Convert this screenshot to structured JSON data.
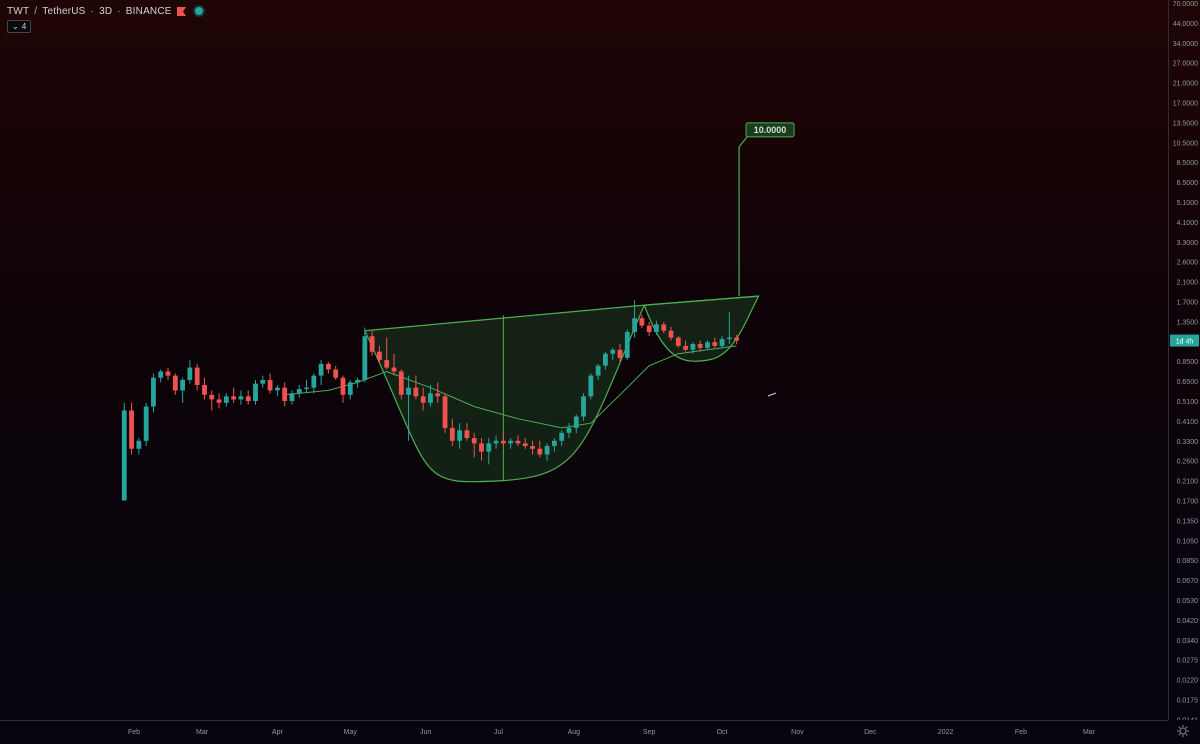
{
  "header": {
    "base": "TWT",
    "separator": "/",
    "quote": "TetherUS",
    "interval": "3D",
    "exchange": "BINANCE",
    "indicator_button": "4"
  },
  "chart_data": {
    "type": "candlestick",
    "price_scale": "log",
    "price_axis_ticks": [
      "70.0000",
      "44.0000",
      "34.0000",
      "27.0000",
      "21.0000",
      "17.0000",
      "13.5000",
      "10.5000",
      "8.5000",
      "6.5000",
      "5.1000",
      "4.1000",
      "3.3000",
      "2.6000",
      "2.1000",
      "1.7000",
      "1.3500",
      "1.0500",
      "0.8500",
      "0.6500",
      "0.5100",
      "0.4100",
      "0.3300",
      "0.2600",
      "0.2100",
      "0.1700",
      "0.1350",
      "0.1050",
      "0.0850",
      "0.0670",
      "0.0530",
      "0.0420",
      "0.0340",
      "0.0275",
      "0.0220",
      "0.0175",
      "0.0141"
    ],
    "time_axis_ticks": [
      "Feb",
      "Mar",
      "Apr",
      "May",
      "Jun",
      "Jul",
      "Aug",
      "Sep",
      "Oct",
      "Nov",
      "Dec",
      "2022",
      "Feb",
      "Mar"
    ],
    "last_price_label": "1d 4h",
    "target_label": "10.0000",
    "colors": {
      "up": "#26a69a",
      "down": "#ef5350",
      "drawing": "#4caf50",
      "fill": "#1b3a1f"
    },
    "candles": [
      {
        "d": "2021-01-28",
        "o": 0.17,
        "h": 0.5,
        "l": 0.17,
        "c": 0.46
      },
      {
        "d": "2021-01-31",
        "o": 0.46,
        "h": 0.5,
        "l": 0.28,
        "c": 0.3
      },
      {
        "d": "2021-02-03",
        "o": 0.3,
        "h": 0.34,
        "l": 0.28,
        "c": 0.33
      },
      {
        "d": "2021-02-06",
        "o": 0.33,
        "h": 0.5,
        "l": 0.31,
        "c": 0.48
      },
      {
        "d": "2021-02-09",
        "o": 0.48,
        "h": 0.72,
        "l": 0.45,
        "c": 0.68
      },
      {
        "d": "2021-02-12",
        "o": 0.68,
        "h": 0.76,
        "l": 0.64,
        "c": 0.74
      },
      {
        "d": "2021-02-15",
        "o": 0.74,
        "h": 0.78,
        "l": 0.66,
        "c": 0.7
      },
      {
        "d": "2021-02-18",
        "o": 0.7,
        "h": 0.72,
        "l": 0.55,
        "c": 0.58
      },
      {
        "d": "2021-02-21",
        "o": 0.58,
        "h": 0.68,
        "l": 0.5,
        "c": 0.66
      },
      {
        "d": "2021-02-24",
        "o": 0.66,
        "h": 0.86,
        "l": 0.63,
        "c": 0.78
      },
      {
        "d": "2021-02-27",
        "o": 0.78,
        "h": 0.82,
        "l": 0.58,
        "c": 0.62
      },
      {
        "d": "2021-03-02",
        "o": 0.62,
        "h": 0.68,
        "l": 0.52,
        "c": 0.55
      },
      {
        "d": "2021-03-05",
        "o": 0.55,
        "h": 0.58,
        "l": 0.46,
        "c": 0.52
      },
      {
        "d": "2021-03-08",
        "o": 0.52,
        "h": 0.56,
        "l": 0.47,
        "c": 0.5
      },
      {
        "d": "2021-03-11",
        "o": 0.5,
        "h": 0.56,
        "l": 0.48,
        "c": 0.54
      },
      {
        "d": "2021-03-14",
        "o": 0.54,
        "h": 0.6,
        "l": 0.5,
        "c": 0.52
      },
      {
        "d": "2021-03-17",
        "o": 0.52,
        "h": 0.58,
        "l": 0.49,
        "c": 0.54
      },
      {
        "d": "2021-03-20",
        "o": 0.54,
        "h": 0.58,
        "l": 0.49,
        "c": 0.51
      },
      {
        "d": "2021-03-23",
        "o": 0.51,
        "h": 0.66,
        "l": 0.49,
        "c": 0.63
      },
      {
        "d": "2021-03-26",
        "o": 0.63,
        "h": 0.7,
        "l": 0.6,
        "c": 0.66
      },
      {
        "d": "2021-03-29",
        "o": 0.66,
        "h": 0.72,
        "l": 0.56,
        "c": 0.58
      },
      {
        "d": "2021-04-01",
        "o": 0.58,
        "h": 0.62,
        "l": 0.54,
        "c": 0.6
      },
      {
        "d": "2021-04-04",
        "o": 0.6,
        "h": 0.64,
        "l": 0.48,
        "c": 0.51
      },
      {
        "d": "2021-04-07",
        "o": 0.51,
        "h": 0.58,
        "l": 0.49,
        "c": 0.56
      },
      {
        "d": "2021-04-10",
        "o": 0.56,
        "h": 0.62,
        "l": 0.53,
        "c": 0.59
      },
      {
        "d": "2021-04-13",
        "o": 0.59,
        "h": 0.66,
        "l": 0.56,
        "c": 0.6
      },
      {
        "d": "2021-04-16",
        "o": 0.6,
        "h": 0.72,
        "l": 0.56,
        "c": 0.7
      },
      {
        "d": "2021-04-19",
        "o": 0.7,
        "h": 0.86,
        "l": 0.62,
        "c": 0.82
      },
      {
        "d": "2021-04-22",
        "o": 0.82,
        "h": 0.84,
        "l": 0.72,
        "c": 0.76
      },
      {
        "d": "2021-04-25",
        "o": 0.76,
        "h": 0.8,
        "l": 0.66,
        "c": 0.68
      },
      {
        "d": "2021-04-28",
        "o": 0.68,
        "h": 0.7,
        "l": 0.5,
        "c": 0.55
      },
      {
        "d": "2021-05-01",
        "o": 0.55,
        "h": 0.66,
        "l": 0.52,
        "c": 0.64
      },
      {
        "d": "2021-05-04",
        "o": 0.64,
        "h": 0.68,
        "l": 0.6,
        "c": 0.66
      },
      {
        "d": "2021-05-07",
        "o": 0.66,
        "h": 1.25,
        "l": 0.64,
        "c": 1.12
      },
      {
        "d": "2021-05-10",
        "o": 1.12,
        "h": 1.2,
        "l": 0.9,
        "c": 0.94
      },
      {
        "d": "2021-05-13",
        "o": 0.94,
        "h": 1.0,
        "l": 0.82,
        "c": 0.86
      },
      {
        "d": "2021-05-16",
        "o": 0.86,
        "h": 1.1,
        "l": 0.76,
        "c": 0.78
      },
      {
        "d": "2021-05-19",
        "o": 0.78,
        "h": 0.92,
        "l": 0.7,
        "c": 0.74
      },
      {
        "d": "2021-05-22",
        "o": 0.74,
        "h": 0.76,
        "l": 0.52,
        "c": 0.55
      },
      {
        "d": "2021-05-25",
        "o": 0.55,
        "h": 0.7,
        "l": 0.33,
        "c": 0.6
      },
      {
        "d": "2021-05-28",
        "o": 0.6,
        "h": 0.7,
        "l": 0.52,
        "c": 0.54
      },
      {
        "d": "2021-05-31",
        "o": 0.54,
        "h": 0.6,
        "l": 0.46,
        "c": 0.5
      },
      {
        "d": "2021-06-03",
        "o": 0.5,
        "h": 0.62,
        "l": 0.48,
        "c": 0.56
      },
      {
        "d": "2021-06-06",
        "o": 0.56,
        "h": 0.64,
        "l": 0.5,
        "c": 0.54
      },
      {
        "d": "2021-06-09",
        "o": 0.54,
        "h": 0.56,
        "l": 0.36,
        "c": 0.38
      },
      {
        "d": "2021-06-12",
        "o": 0.38,
        "h": 0.42,
        "l": 0.31,
        "c": 0.33
      },
      {
        "d": "2021-06-15",
        "o": 0.33,
        "h": 0.4,
        "l": 0.3,
        "c": 0.37
      },
      {
        "d": "2021-06-18",
        "o": 0.37,
        "h": 0.4,
        "l": 0.33,
        "c": 0.34
      },
      {
        "d": "2021-06-21",
        "o": 0.34,
        "h": 0.36,
        "l": 0.27,
        "c": 0.32
      },
      {
        "d": "2021-06-24",
        "o": 0.32,
        "h": 0.34,
        "l": 0.26,
        "c": 0.29
      },
      {
        "d": "2021-06-27",
        "o": 0.29,
        "h": 0.34,
        "l": 0.25,
        "c": 0.32
      },
      {
        "d": "2021-06-30",
        "o": 0.32,
        "h": 0.35,
        "l": 0.3,
        "c": 0.33
      },
      {
        "d": "2021-07-03",
        "o": 0.33,
        "h": 0.36,
        "l": 0.31,
        "c": 0.32
      },
      {
        "d": "2021-07-06",
        "o": 0.32,
        "h": 0.34,
        "l": 0.3,
        "c": 0.33
      },
      {
        "d": "2021-07-09",
        "o": 0.33,
        "h": 0.35,
        "l": 0.31,
        "c": 0.32
      },
      {
        "d": "2021-07-12",
        "o": 0.32,
        "h": 0.34,
        "l": 0.3,
        "c": 0.31
      },
      {
        "d": "2021-07-15",
        "o": 0.31,
        "h": 0.33,
        "l": 0.28,
        "c": 0.3
      },
      {
        "d": "2021-07-18",
        "o": 0.3,
        "h": 0.33,
        "l": 0.27,
        "c": 0.28
      },
      {
        "d": "2021-07-21",
        "o": 0.28,
        "h": 0.32,
        "l": 0.26,
        "c": 0.31
      },
      {
        "d": "2021-07-24",
        "o": 0.31,
        "h": 0.34,
        "l": 0.29,
        "c": 0.33
      },
      {
        "d": "2021-07-27",
        "o": 0.33,
        "h": 0.37,
        "l": 0.31,
        "c": 0.36
      },
      {
        "d": "2021-07-30",
        "o": 0.36,
        "h": 0.4,
        "l": 0.34,
        "c": 0.38
      },
      {
        "d": "2021-08-02",
        "o": 0.38,
        "h": 0.44,
        "l": 0.36,
        "c": 0.43
      },
      {
        "d": "2021-08-05",
        "o": 0.43,
        "h": 0.56,
        "l": 0.41,
        "c": 0.54
      },
      {
        "d": "2021-08-08",
        "o": 0.54,
        "h": 0.72,
        "l": 0.52,
        "c": 0.7
      },
      {
        "d": "2021-08-11",
        "o": 0.7,
        "h": 0.82,
        "l": 0.66,
        "c": 0.8
      },
      {
        "d": "2021-08-14",
        "o": 0.8,
        "h": 0.94,
        "l": 0.76,
        "c": 0.92
      },
      {
        "d": "2021-08-17",
        "o": 0.92,
        "h": 0.98,
        "l": 0.86,
        "c": 0.96
      },
      {
        "d": "2021-08-20",
        "o": 0.96,
        "h": 1.02,
        "l": 0.84,
        "c": 0.88
      },
      {
        "d": "2021-08-23",
        "o": 0.88,
        "h": 1.22,
        "l": 0.86,
        "c": 1.18
      },
      {
        "d": "2021-08-26",
        "o": 1.18,
        "h": 1.72,
        "l": 1.1,
        "c": 1.4
      },
      {
        "d": "2021-08-29",
        "o": 1.4,
        "h": 1.46,
        "l": 1.24,
        "c": 1.28
      },
      {
        "d": "2021-09-01",
        "o": 1.28,
        "h": 1.34,
        "l": 1.12,
        "c": 1.18
      },
      {
        "d": "2021-09-04",
        "o": 1.18,
        "h": 1.36,
        "l": 1.14,
        "c": 1.3
      },
      {
        "d": "2021-09-07",
        "o": 1.3,
        "h": 1.34,
        "l": 1.16,
        "c": 1.2
      },
      {
        "d": "2021-09-10",
        "o": 1.2,
        "h": 1.26,
        "l": 1.06,
        "c": 1.1
      },
      {
        "d": "2021-09-13",
        "o": 1.1,
        "h": 1.12,
        "l": 0.98,
        "c": 1.0
      },
      {
        "d": "2021-09-16",
        "o": 1.0,
        "h": 1.06,
        "l": 0.94,
        "c": 0.96
      },
      {
        "d": "2021-09-19",
        "o": 0.96,
        "h": 1.04,
        "l": 0.92,
        "c": 1.02
      },
      {
        "d": "2021-09-22",
        "o": 1.02,
        "h": 1.06,
        "l": 0.94,
        "c": 0.98
      },
      {
        "d": "2021-09-25",
        "o": 0.98,
        "h": 1.06,
        "l": 0.96,
        "c": 1.04
      },
      {
        "d": "2021-09-28",
        "o": 1.04,
        "h": 1.1,
        "l": 0.98,
        "c": 1.0
      },
      {
        "d": "2021-10-01",
        "o": 1.0,
        "h": 1.12,
        "l": 0.98,
        "c": 1.08
      },
      {
        "d": "2021-10-04",
        "o": 1.08,
        "h": 1.5,
        "l": 1.02,
        "c": 1.1
      },
      {
        "d": "2021-10-07",
        "o": 1.1,
        "h": 1.14,
        "l": 1.02,
        "c": 1.06
      }
    ],
    "moving_average": [
      {
        "d": "2021-04-04",
        "v": 0.55
      },
      {
        "d": "2021-04-22",
        "v": 0.58
      },
      {
        "d": "2021-05-04",
        "v": 0.64
      },
      {
        "d": "2021-05-16",
        "v": 0.74
      },
      {
        "d": "2021-06-03",
        "v": 0.6
      },
      {
        "d": "2021-06-21",
        "v": 0.48
      },
      {
        "d": "2021-07-09",
        "v": 0.42
      },
      {
        "d": "2021-07-27",
        "v": 0.38
      },
      {
        "d": "2021-08-08",
        "v": 0.4
      },
      {
        "d": "2021-08-20",
        "v": 0.55
      },
      {
        "d": "2021-09-01",
        "v": 0.8
      },
      {
        "d": "2021-09-13",
        "v": 0.92
      },
      {
        "d": "2021-09-25",
        "v": 0.96
      },
      {
        "d": "2021-10-07",
        "v": 1.0
      }
    ],
    "cup_and_handle": {
      "rim_left": {
        "d": "2021-05-07",
        "v": 1.2
      },
      "cup_bottom": {
        "d": "2021-07-03",
        "v": 0.21
      },
      "rim_mid": {
        "d": "2021-07-03",
        "v": 1.45
      },
      "rim_right": {
        "d": "2021-08-30",
        "v": 1.63
      },
      "handle_bottom": {
        "d": "2021-09-25",
        "v": 0.86
      },
      "handle_end": {
        "d": "2021-10-16",
        "v": 1.8
      },
      "breakout_top": {
        "d": "2021-10-08",
        "v": 10.0
      },
      "breakout_base": {
        "d": "2021-10-08",
        "v": 1.8
      }
    }
  }
}
